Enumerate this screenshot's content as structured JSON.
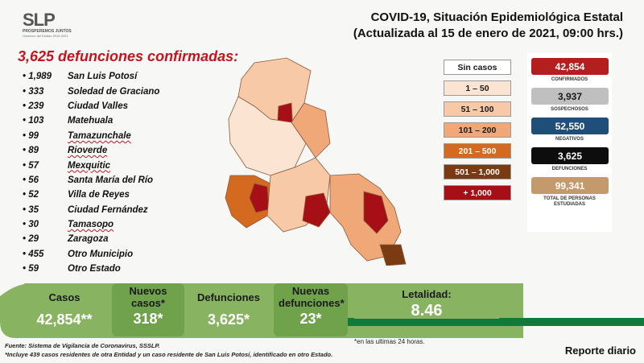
{
  "logo": {
    "mark": "SLP",
    "tagline": "PROSPEREMOS JUNTOS",
    "sub": "Gobierno del Estado 2015-2021"
  },
  "title": {
    "line1": "COVID-19, Situación Epidemiológica Estatal",
    "line2": "(Actualizada al 15 de enero de 2021, 09:00 hrs.)"
  },
  "deaths_heading": "3,625 defunciones confirmadas:",
  "deaths_list": [
    {
      "count": "1,989",
      "place": "San Luis Potosí"
    },
    {
      "count": "333",
      "place": "Soledad de Graciano"
    },
    {
      "count": "239",
      "place": "Ciudad Valles"
    },
    {
      "count": "103",
      "place": "Matehuala"
    },
    {
      "count": "99",
      "place": "Tamazunchale"
    },
    {
      "count": "89",
      "place": "Rioverde"
    },
    {
      "count": "57",
      "place": "Mexquitic"
    },
    {
      "count": "56",
      "place": "Santa María del Río"
    },
    {
      "count": "52",
      "place": "Villa de Reyes"
    },
    {
      "count": "35",
      "place": "Ciudad Fernández"
    },
    {
      "count": "30",
      "place": "Tamasopo"
    },
    {
      "count": "29",
      "place": "Zaragoza"
    },
    {
      "count": "455",
      "place": "Otro Municipio"
    },
    {
      "count": "59",
      "place": "Otro Estado"
    }
  ],
  "legend": [
    {
      "label": "Sin casos",
      "bg": "#ffffff",
      "fg": "#1a1a1a"
    },
    {
      "label": "1 – 50",
      "bg": "#fbe4d2",
      "fg": "#1a1a1a"
    },
    {
      "label": "51 – 100",
      "bg": "#f7c9a6",
      "fg": "#1a1a1a"
    },
    {
      "label": "101 – 200",
      "bg": "#f0a878",
      "fg": "#1a1a1a"
    },
    {
      "label": "201 – 500",
      "bg": "#d46a1f",
      "fg": "#ffffff"
    },
    {
      "label": "501 – 1,000",
      "bg": "#7a3b12",
      "fg": "#ffffff"
    },
    {
      "label": "+ 1,000",
      "bg": "#a50f15",
      "fg": "#ffffff"
    }
  ],
  "stats": [
    {
      "value": "42,854",
      "label": "CONFIRMADOS",
      "bg": "#b41e1e",
      "fg": "#ffffff"
    },
    {
      "value": "3,937",
      "label": "SOSPECHOSOS",
      "bg": "#bfbfbf",
      "fg": "#1a1a1a"
    },
    {
      "value": "52,550",
      "label": "NEGATIVOS",
      "bg": "#1f4e79",
      "fg": "#ffffff"
    },
    {
      "value": "3,625",
      "label": "DEFUNCIONES",
      "bg": "#0d0d0d",
      "fg": "#ffffff"
    },
    {
      "value": "99,341",
      "label": "TOTAL DE PERSONAS ESTUDIADAS",
      "bg": "#c49a6c",
      "fg": "#ffffff"
    }
  ],
  "summary": {
    "casos_label": "Casos",
    "casos_value": "42,854**",
    "nuevos_label": "Nuevos casos*",
    "nuevos_value": "318*",
    "defunciones_label": "Defunciones",
    "defunciones_value": "3,625*",
    "nuevas_def_label": "Nuevas defunciones*",
    "nuevas_def_value": "23*",
    "letalidad_label": "Letalidad:",
    "letalidad_value": "8.46"
  },
  "note_24h": "*en las ultimas 24 horas.",
  "source_line1": "Fuente: Sistema de Vigilancia de Coronavirus, SSSLP.",
  "source_line2": "*Incluye 439 casos residentes de otra Entidad y un caso residente de San Luis Potosí, identificado en otro Estado.",
  "report_label": "Reporte diario"
}
